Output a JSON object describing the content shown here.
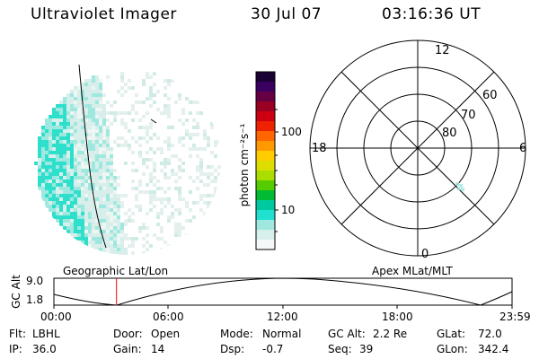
{
  "header": {
    "instrument": "Ultraviolet Imager",
    "date": "30 Jul 07",
    "time": "03:16:36 UT"
  },
  "colorbar": {
    "unit_label": "photon cm⁻²s⁻¹",
    "ticks": [
      "100",
      "10"
    ],
    "colors": [
      "#1a0033",
      "#3a0060",
      "#660044",
      "#990022",
      "#cc0011",
      "#ee2200",
      "#ff6600",
      "#ff9900",
      "#ffcc00",
      "#dddd00",
      "#aadd00",
      "#55cc00",
      "#00bb33",
      "#00c9a0",
      "#22e0d0",
      "#9fe8e0",
      "#d8f0ec",
      "#f4f8f8"
    ]
  },
  "polar_plot": {
    "mlt_labels": {
      "top": "12",
      "left": "18",
      "right": "6",
      "bottom": "0"
    },
    "lat_labels": [
      "60",
      "70",
      "80"
    ]
  },
  "panel_labels": {
    "geographic": "Geographic Lat/Lon",
    "apex": "Apex MLat/MLT"
  },
  "altitude_plot": {
    "ylabel": "GC Alt",
    "ytick_high": "9.0",
    "ytick_low": "1.8",
    "xticks": [
      "00:00",
      "06:00",
      "12:00",
      "18:00",
      "23:59"
    ],
    "current_time_fraction": 0.1367
  },
  "info": {
    "flt_label": "Flt:",
    "flt_value": "LBHL",
    "ip_label": "IP:",
    "ip_value": "36.0",
    "door_label": "Door:",
    "door_value": "Open",
    "gain_label": "Gain:",
    "gain_value": "14",
    "mode_label": "Mode:",
    "mode_value": "Normal",
    "dsp_label": "Dsp:",
    "dsp_value": "-0.7",
    "gcalt_label": "GC Alt:",
    "gcalt_value": "2.2 Re",
    "seq_label": "Seq:",
    "seq_value": "39",
    "glat_label": "GLat:",
    "glat_value": "72.0",
    "glon_label": "GLon:",
    "glon_value": "342.4"
  }
}
